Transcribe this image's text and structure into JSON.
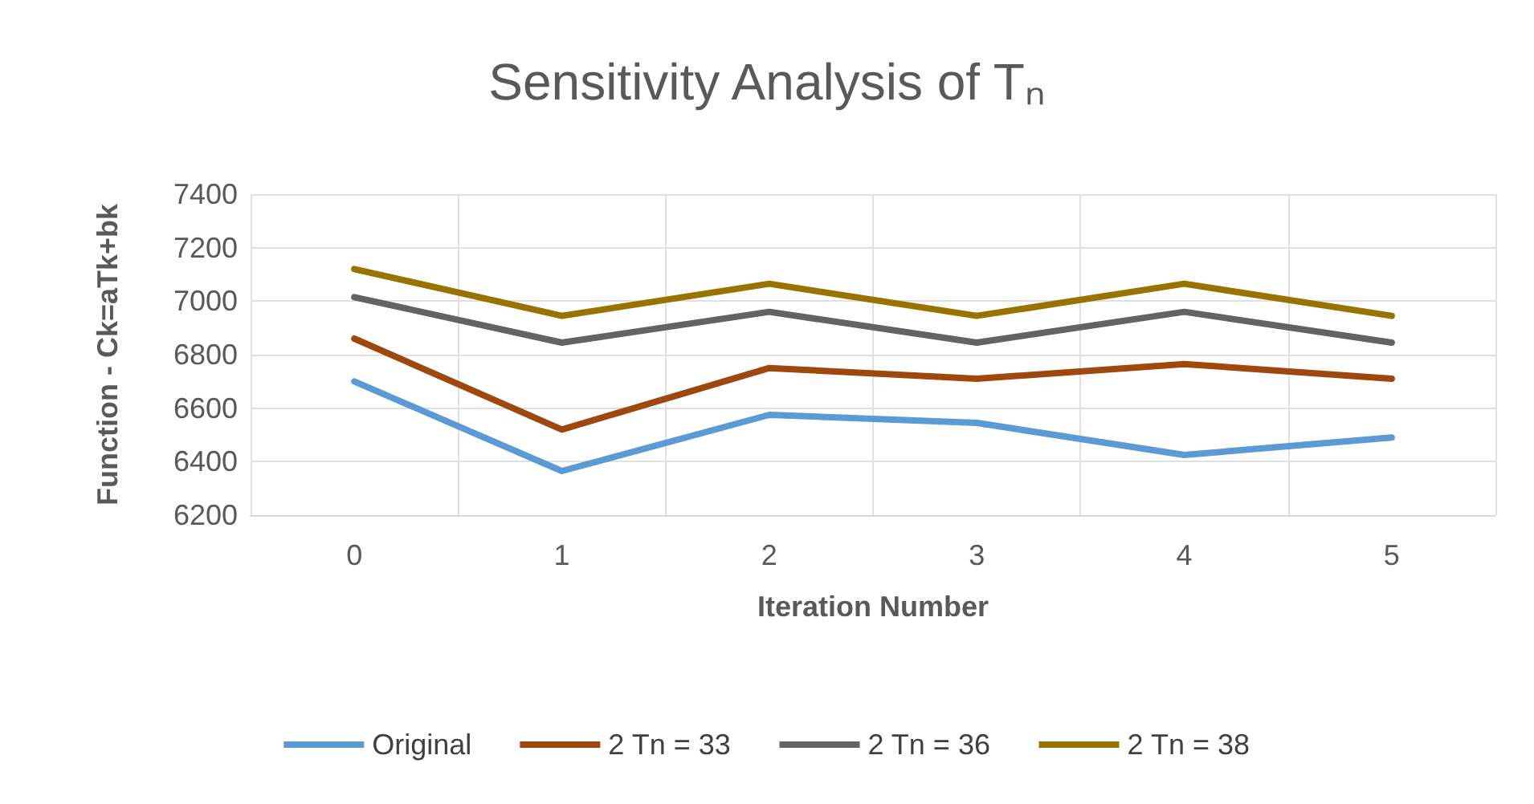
{
  "chart_data": {
    "type": "line",
    "title": "Sensitivity Analysis of Tₙ",
    "xlabel": "Iteration Number",
    "ylabel": "Function - Ck=aTk+bk",
    "categories": [
      "0",
      "1",
      "2",
      "3",
      "4",
      "5"
    ],
    "series": [
      {
        "name": "Original",
        "color": "#5b9bd5",
        "values": [
          6700,
          6365,
          6575,
          6545,
          6425,
          6490
        ]
      },
      {
        "name": "2 Tn = 33",
        "color": "#9e480e",
        "values": [
          6860,
          6520,
          6750,
          6710,
          6765,
          6710
        ]
      },
      {
        "name": "2 Tn = 36",
        "color": "#636363",
        "values": [
          7015,
          6845,
          6960,
          6845,
          6960,
          6845
        ]
      },
      {
        "name": "2 Tn = 38",
        "color": "#997300",
        "values": [
          7120,
          6945,
          7065,
          6945,
          7065,
          6945
        ]
      }
    ],
    "ylim": [
      6200,
      7400
    ],
    "yticks": [
      6200,
      6400,
      6600,
      6800,
      7000,
      7200,
      7400
    ],
    "grid": true,
    "legend": "bottom",
    "marker": "none",
    "line_style": "solid"
  }
}
